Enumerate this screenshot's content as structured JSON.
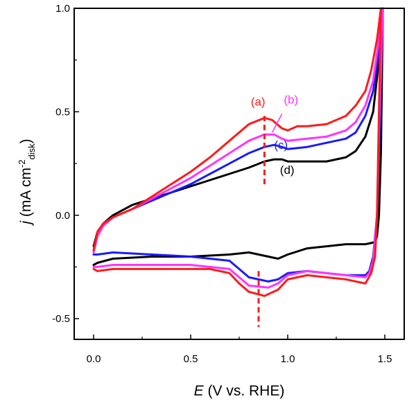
{
  "chart_data": {
    "type": "line",
    "xlabel": {
      "symbol": "E",
      "rest": " (V vs. RHE)"
    },
    "ylabel": {
      "symbol": "j",
      "pre": " (mA cm",
      "sup": "-2",
      "sub": "disk",
      "post": ")"
    },
    "xlim": [
      -0.1,
      1.6
    ],
    "ylim": [
      -0.6,
      1.0
    ],
    "xticks": [
      {
        "v": 0.0,
        "label": "0.0"
      },
      {
        "v": 0.5,
        "label": "0.5"
      },
      {
        "v": 1.0,
        "label": "1.0"
      },
      {
        "v": 1.5,
        "label": "1.5"
      }
    ],
    "yticks": [
      {
        "v": -0.5,
        "label": "-0.5"
      },
      {
        "v": 0.0,
        "label": "0.0"
      },
      {
        "v": 0.5,
        "label": "0.5"
      },
      {
        "v": 1.0,
        "label": "1.0"
      }
    ],
    "grid": false,
    "series": [
      {
        "label": "(a)",
        "color": "#ff1a1a",
        "anodic": [
          [
            0,
            -0.17
          ],
          [
            0.02,
            -0.08
          ],
          [
            0.05,
            -0.04
          ],
          [
            0.1,
            -0.01
          ],
          [
            0.2,
            0.03
          ],
          [
            0.3,
            0.09
          ],
          [
            0.4,
            0.15
          ],
          [
            0.5,
            0.21
          ],
          [
            0.6,
            0.28
          ],
          [
            0.7,
            0.36
          ],
          [
            0.8,
            0.44
          ],
          [
            0.88,
            0.47
          ],
          [
            0.92,
            0.46
          ],
          [
            0.97,
            0.42
          ],
          [
            1.0,
            0.41
          ],
          [
            1.05,
            0.43
          ],
          [
            1.1,
            0.43
          ],
          [
            1.2,
            0.44
          ],
          [
            1.3,
            0.48
          ],
          [
            1.35,
            0.53
          ],
          [
            1.4,
            0.6
          ],
          [
            1.43,
            0.7
          ],
          [
            1.46,
            0.85
          ],
          [
            1.48,
            1.0
          ]
        ],
        "cathodic": [
          [
            1.48,
            1.0
          ],
          [
            1.47,
            0.5
          ],
          [
            1.46,
            0.0
          ],
          [
            1.45,
            -0.2
          ],
          [
            1.43,
            -0.28
          ],
          [
            1.4,
            -0.33
          ],
          [
            1.3,
            -0.31
          ],
          [
            1.2,
            -0.3
          ],
          [
            1.1,
            -0.29
          ],
          [
            1.0,
            -0.31
          ],
          [
            0.95,
            -0.36
          ],
          [
            0.88,
            -0.39
          ],
          [
            0.8,
            -0.37
          ],
          [
            0.75,
            -0.33
          ],
          [
            0.7,
            -0.28
          ],
          [
            0.6,
            -0.26
          ],
          [
            0.5,
            -0.26
          ],
          [
            0.3,
            -0.26
          ],
          [
            0.1,
            -0.26
          ],
          [
            0.02,
            -0.27
          ],
          [
            0,
            -0.26
          ]
        ]
      },
      {
        "label": "(b)",
        "color": "#ff33ff",
        "anodic": [
          [
            0,
            -0.18
          ],
          [
            0.02,
            -0.1
          ],
          [
            0.05,
            -0.05
          ],
          [
            0.1,
            -0.01
          ],
          [
            0.2,
            0.03
          ],
          [
            0.3,
            0.08
          ],
          [
            0.4,
            0.13
          ],
          [
            0.5,
            0.18
          ],
          [
            0.6,
            0.24
          ],
          [
            0.7,
            0.3
          ],
          [
            0.8,
            0.36
          ],
          [
            0.88,
            0.39
          ],
          [
            0.93,
            0.39
          ],
          [
            0.97,
            0.37
          ],
          [
            1.0,
            0.36
          ],
          [
            1.1,
            0.37
          ],
          [
            1.2,
            0.38
          ],
          [
            1.3,
            0.41
          ],
          [
            1.35,
            0.45
          ],
          [
            1.4,
            0.53
          ],
          [
            1.44,
            0.65
          ],
          [
            1.47,
            0.85
          ],
          [
            1.49,
            1.0
          ]
        ],
        "cathodic": [
          [
            1.49,
            1.0
          ],
          [
            1.47,
            0.4
          ],
          [
            1.46,
            0.0
          ],
          [
            1.44,
            -0.22
          ],
          [
            1.42,
            -0.28
          ],
          [
            1.4,
            -0.3
          ],
          [
            1.3,
            -0.29
          ],
          [
            1.2,
            -0.28
          ],
          [
            1.1,
            -0.27
          ],
          [
            1.0,
            -0.29
          ],
          [
            0.95,
            -0.33
          ],
          [
            0.9,
            -0.35
          ],
          [
            0.8,
            -0.34
          ],
          [
            0.75,
            -0.3
          ],
          [
            0.7,
            -0.26
          ],
          [
            0.5,
            -0.24
          ],
          [
            0.3,
            -0.24
          ],
          [
            0.1,
            -0.24
          ],
          [
            0.02,
            -0.25
          ],
          [
            0,
            -0.25
          ]
        ]
      },
      {
        "label": "(c)",
        "color": "#1a1aff",
        "anodic": [
          [
            0,
            -0.17
          ],
          [
            0.02,
            -0.1
          ],
          [
            0.05,
            -0.05
          ],
          [
            0.1,
            -0.01
          ],
          [
            0.2,
            0.03
          ],
          [
            0.3,
            0.07
          ],
          [
            0.4,
            0.11
          ],
          [
            0.5,
            0.15
          ],
          [
            0.6,
            0.2
          ],
          [
            0.7,
            0.25
          ],
          [
            0.8,
            0.3
          ],
          [
            0.88,
            0.33
          ],
          [
            0.93,
            0.34
          ],
          [
            0.97,
            0.33
          ],
          [
            1.0,
            0.32
          ],
          [
            1.1,
            0.33
          ],
          [
            1.2,
            0.35
          ],
          [
            1.3,
            0.37
          ],
          [
            1.35,
            0.4
          ],
          [
            1.4,
            0.48
          ],
          [
            1.44,
            0.6
          ],
          [
            1.47,
            0.8
          ],
          [
            1.49,
            1.0
          ]
        ],
        "cathodic": [
          [
            1.49,
            1.0
          ],
          [
            1.47,
            0.3
          ],
          [
            1.46,
            0.0
          ],
          [
            1.44,
            -0.2
          ],
          [
            1.42,
            -0.27
          ],
          [
            1.4,
            -0.29
          ],
          [
            1.3,
            -0.29
          ],
          [
            1.2,
            -0.28
          ],
          [
            1.1,
            -0.27
          ],
          [
            1.0,
            -0.28
          ],
          [
            0.95,
            -0.31
          ],
          [
            0.9,
            -0.32
          ],
          [
            0.8,
            -0.3
          ],
          [
            0.75,
            -0.26
          ],
          [
            0.7,
            -0.22
          ],
          [
            0.5,
            -0.2
          ],
          [
            0.3,
            -0.19
          ],
          [
            0.1,
            -0.18
          ],
          [
            0.02,
            -0.19
          ],
          [
            0,
            -0.19
          ]
        ]
      },
      {
        "label": "(d)",
        "color": "#000000",
        "anodic": [
          [
            0,
            -0.15
          ],
          [
            0.02,
            -0.08
          ],
          [
            0.05,
            -0.04
          ],
          [
            0.1,
            0.0
          ],
          [
            0.2,
            0.05
          ],
          [
            0.3,
            0.08
          ],
          [
            0.4,
            0.11
          ],
          [
            0.5,
            0.14
          ],
          [
            0.6,
            0.17
          ],
          [
            0.7,
            0.2
          ],
          [
            0.8,
            0.23
          ],
          [
            0.88,
            0.26
          ],
          [
            0.93,
            0.27
          ],
          [
            0.97,
            0.27
          ],
          [
            1.0,
            0.26
          ],
          [
            1.1,
            0.26
          ],
          [
            1.2,
            0.26
          ],
          [
            1.3,
            0.28
          ],
          [
            1.35,
            0.31
          ],
          [
            1.4,
            0.38
          ],
          [
            1.44,
            0.5
          ],
          [
            1.47,
            0.75
          ],
          [
            1.49,
            1.0
          ]
        ],
        "cathodic": [
          [
            1.49,
            1.0
          ],
          [
            1.48,
            0.3
          ],
          [
            1.47,
            0.0
          ],
          [
            1.46,
            -0.1
          ],
          [
            1.45,
            -0.13
          ],
          [
            1.4,
            -0.14
          ],
          [
            1.3,
            -0.14
          ],
          [
            1.2,
            -0.15
          ],
          [
            1.1,
            -0.16
          ],
          [
            1.0,
            -0.19
          ],
          [
            0.95,
            -0.21
          ],
          [
            0.9,
            -0.2
          ],
          [
            0.8,
            -0.18
          ],
          [
            0.7,
            -0.19
          ],
          [
            0.5,
            -0.2
          ],
          [
            0.3,
            -0.2
          ],
          [
            0.1,
            -0.21
          ],
          [
            0.02,
            -0.23
          ],
          [
            0,
            -0.24
          ]
        ]
      }
    ],
    "annotations": [
      {
        "text": "(a)",
        "color": "#ff1a1a",
        "x": 0.81,
        "y": 0.53
      },
      {
        "text": "(b)",
        "color": "#ff33ff",
        "x": 0.98,
        "y": 0.54
      },
      {
        "text": "(c)",
        "color": "#1a1aff",
        "x": 0.93,
        "y": 0.32
      },
      {
        "text": "(d)",
        "color": "#000000",
        "x": 0.96,
        "y": 0.2
      }
    ],
    "reference_lines": [
      {
        "x": 0.88,
        "y_from": 0.15,
        "y_to": 0.48,
        "color": "#ff1a1a",
        "style": "dashed"
      },
      {
        "x": 0.85,
        "y_from": -0.27,
        "y_to": -0.54,
        "color": "#ff1a1a",
        "style": "dashed"
      }
    ]
  }
}
